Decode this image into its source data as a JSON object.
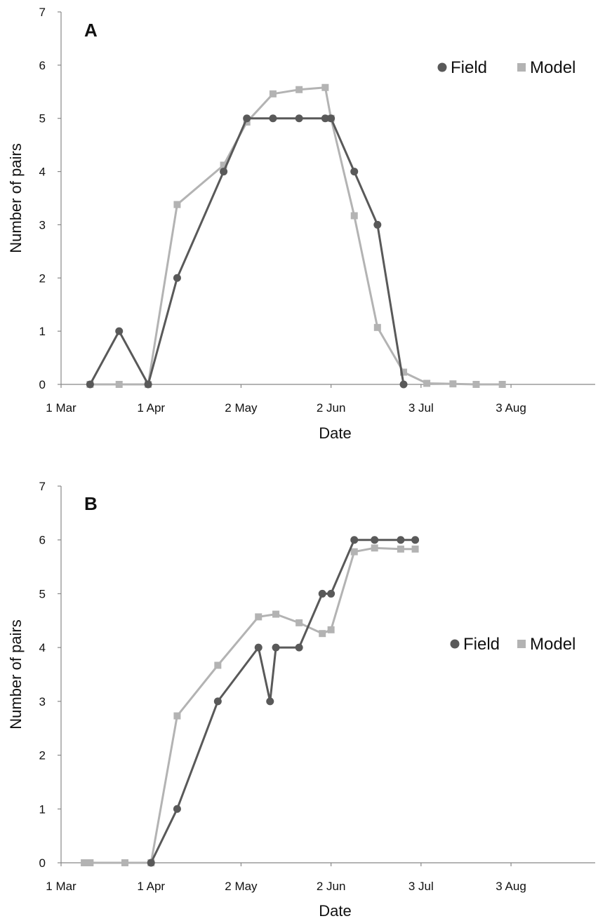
{
  "chart_data": [
    {
      "type": "line",
      "panel_label": "A",
      "xlabel": "Date",
      "ylabel": "Number of pairs",
      "ylim": [
        0,
        7
      ],
      "yticks": [
        0,
        1,
        2,
        3,
        4,
        5,
        6,
        7
      ],
      "xlim": [
        "1 Mar",
        "1 Sep"
      ],
      "xticks": [
        {
          "date": "2000-03-01",
          "label": "1 Mar"
        },
        {
          "date": "2000-04-01",
          "label": "1 Apr"
        },
        {
          "date": "2000-05-02",
          "label": "2 May"
        },
        {
          "date": "2000-06-02",
          "label": "2 Jun"
        },
        {
          "date": "2000-07-03",
          "label": "3 Jul"
        },
        {
          "date": "2000-08-03",
          "label": "3 Aug"
        }
      ],
      "xlim_dates": [
        "2000-03-01",
        "2000-09-01"
      ],
      "grid": false,
      "legend_position": "top-right",
      "series": [
        {
          "name": "Field",
          "color": "#595959",
          "marker": "circle",
          "points": [
            [
              "2000-03-11",
              0
            ],
            [
              "2000-03-21",
              1
            ],
            [
              "2000-03-31",
              0
            ],
            [
              "2000-04-10",
              2
            ],
            [
              "2000-04-26",
              4
            ],
            [
              "2000-05-04",
              5
            ],
            [
              "2000-05-13",
              5
            ],
            [
              "2000-05-22",
              5
            ],
            [
              "2000-05-31",
              5
            ],
            [
              "2000-06-02",
              5
            ],
            [
              "2000-06-10",
              4
            ],
            [
              "2000-06-18",
              3
            ],
            [
              "2000-06-27",
              0
            ]
          ]
        },
        {
          "name": "Model",
          "color": "#b3b3b3",
          "marker": "square",
          "points": [
            [
              "2000-03-11",
              0
            ],
            [
              "2000-03-21",
              0
            ],
            [
              "2000-03-31",
              0
            ],
            [
              "2000-04-10",
              3.38
            ],
            [
              "2000-04-26",
              4.12
            ],
            [
              "2000-05-04",
              4.93
            ],
            [
              "2000-05-13",
              5.46
            ],
            [
              "2000-05-22",
              5.54
            ],
            [
              "2000-05-31",
              5.58
            ],
            [
              "2000-06-02",
              5.0
            ],
            [
              "2000-06-10",
              3.17
            ],
            [
              "2000-06-18",
              1.07
            ],
            [
              "2000-06-27",
              0.23
            ],
            [
              "2000-07-05",
              0.02
            ],
            [
              "2000-07-14",
              0.01
            ],
            [
              "2000-07-22",
              0
            ],
            [
              "2000-07-31",
              0
            ]
          ]
        }
      ]
    },
    {
      "type": "line",
      "panel_label": "B",
      "xlabel": "Date",
      "ylabel": "Number of pairs",
      "ylim": [
        0,
        7
      ],
      "yticks": [
        0,
        1,
        2,
        3,
        4,
        5,
        6,
        7
      ],
      "xlim": [
        "1 Mar",
        "1 Sep"
      ],
      "xticks": [
        {
          "date": "2000-03-01",
          "label": "1 Mar"
        },
        {
          "date": "2000-04-01",
          "label": "1 Apr"
        },
        {
          "date": "2000-05-02",
          "label": "2 May"
        },
        {
          "date": "2000-06-02",
          "label": "2 Jun"
        },
        {
          "date": "2000-07-03",
          "label": "3 Jul"
        },
        {
          "date": "2000-08-03",
          "label": "3 Aug"
        }
      ],
      "xlim_dates": [
        "2000-03-01",
        "2000-09-01"
      ],
      "grid": false,
      "legend_position": "right",
      "series": [
        {
          "name": "Field",
          "color": "#595959",
          "marker": "circle",
          "points": [
            [
              "2000-04-01",
              0
            ],
            [
              "2000-04-10",
              1
            ],
            [
              "2000-04-24",
              3
            ],
            [
              "2000-05-08",
              4
            ],
            [
              "2000-05-12",
              3
            ],
            [
              "2000-05-14",
              4
            ],
            [
              "2000-05-22",
              4
            ],
            [
              "2000-05-30",
              5
            ],
            [
              "2000-06-02",
              5
            ],
            [
              "2000-06-10",
              6
            ],
            [
              "2000-06-17",
              6
            ],
            [
              "2000-06-26",
              6
            ],
            [
              "2000-07-01",
              6
            ]
          ]
        },
        {
          "name": "Model",
          "color": "#b3b3b3",
          "marker": "square",
          "points": [
            [
              "2000-03-09",
              0
            ],
            [
              "2000-03-11",
              0
            ],
            [
              "2000-03-23",
              0
            ],
            [
              "2000-04-01",
              0
            ],
            [
              "2000-04-10",
              2.73
            ],
            [
              "2000-04-24",
              3.67
            ],
            [
              "2000-05-08",
              4.57
            ],
            [
              "2000-05-14",
              4.62
            ],
            [
              "2000-05-22",
              4.46
            ],
            [
              "2000-05-30",
              4.26
            ],
            [
              "2000-06-02",
              4.33
            ],
            [
              "2000-06-10",
              5.78
            ],
            [
              "2000-06-17",
              5.85
            ],
            [
              "2000-06-26",
              5.83
            ],
            [
              "2000-07-01",
              5.83
            ]
          ]
        }
      ]
    }
  ]
}
